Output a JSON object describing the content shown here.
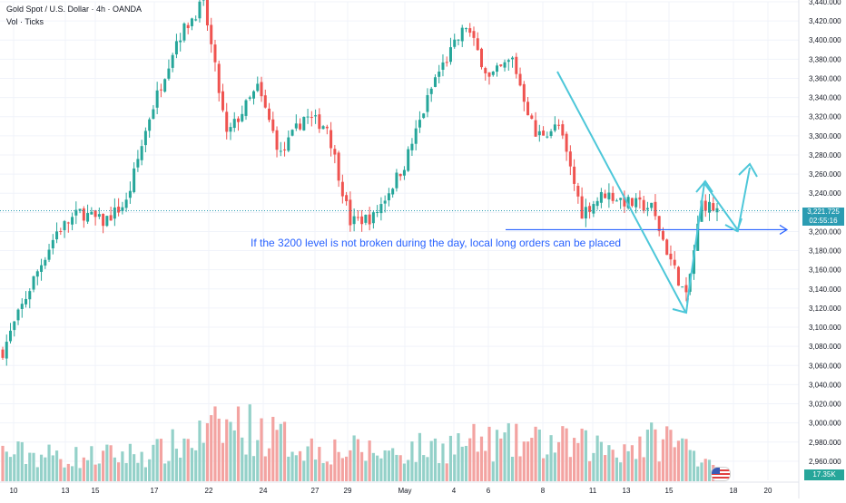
{
  "header": {
    "title": "Gold Spot / U.S. Dollar · 4h · OANDA",
    "volume_label": "Vol · Ticks"
  },
  "badges": {
    "last_price": "3,221.725",
    "countdown": "02:55:16",
    "volume_value": "17.35K"
  },
  "colors": {
    "up": "#26a69a",
    "down": "#ef5350",
    "vol_up": "#94d1c9",
    "vol_down": "#f3a3a1",
    "arrow": "#4dc7d9",
    "level_line": "#2962ff",
    "annotation": "#2962ff"
  },
  "annotation": "If the 3200 level is not broken during the day, local long orders can be placed",
  "chart_data": {
    "type": "candlestick",
    "title": "Gold Spot / U.S. Dollar · 4h · OANDA",
    "ylim": [
      2940,
      3440
    ],
    "y_ticks": [
      "2,960.000",
      "2,980.000",
      "3,000.000",
      "3,020.000",
      "3,040.000",
      "3,060.000",
      "3,080.000",
      "3,100.000",
      "3,120.000",
      "3,140.000",
      "3,160.000",
      "3,180.000",
      "3,200.000",
      "3,220.000",
      "3,240.000",
      "3,260.000",
      "3,280.000",
      "3,300.000",
      "3,320.000",
      "3,340.000",
      "3,360.000",
      "3,380.000",
      "3,400.000",
      "3,420.000",
      "3,440.000"
    ],
    "x_ticks": [
      "10",
      "13",
      "15",
      "17",
      "22",
      "24",
      "27",
      "29",
      "May",
      "4",
      "6",
      "8",
      "11",
      "13",
      "15",
      "18",
      "20"
    ],
    "grid": true,
    "current_price": 3221.725,
    "level": 3200,
    "close_anchors": [
      [
        0,
        3075
      ],
      [
        8,
        3150
      ],
      [
        14,
        3200
      ],
      [
        20,
        3220
      ],
      [
        26,
        3210
      ],
      [
        32,
        3230
      ],
      [
        38,
        3320
      ],
      [
        45,
        3400
      ],
      [
        52,
        3440
      ],
      [
        58,
        3300
      ],
      [
        66,
        3350
      ],
      [
        72,
        3280
      ],
      [
        78,
        3320
      ],
      [
        84,
        3310
      ],
      [
        90,
        3210
      ],
      [
        96,
        3215
      ],
      [
        104,
        3270
      ],
      [
        112,
        3360
      ],
      [
        120,
        3415
      ],
      [
        126,
        3360
      ],
      [
        132,
        3380
      ],
      [
        138,
        3300
      ],
      [
        144,
        3310
      ],
      [
        150,
        3220
      ],
      [
        156,
        3240
      ],
      [
        162,
        3230
      ],
      [
        168,
        3225
      ],
      [
        172,
        3180
      ],
      [
        177,
        3130
      ],
      [
        181,
        3230
      ],
      [
        185,
        3222
      ]
    ],
    "volume_profile": [
      [
        0,
        30
      ],
      [
        20,
        25
      ],
      [
        40,
        30
      ],
      [
        60,
        60
      ],
      [
        80,
        35
      ],
      [
        100,
        30
      ],
      [
        120,
        40
      ],
      [
        140,
        40
      ],
      [
        160,
        35
      ],
      [
        172,
        45
      ],
      [
        180,
        30
      ],
      [
        185,
        20
      ]
    ]
  }
}
